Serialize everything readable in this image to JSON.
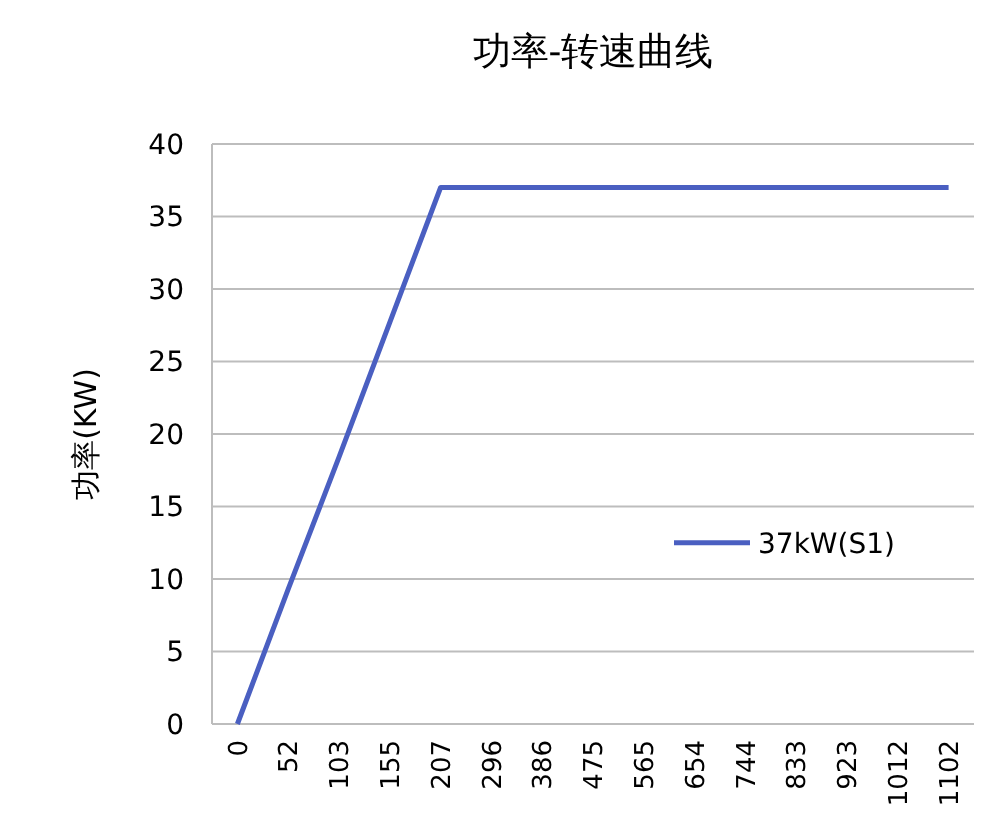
{
  "chart_data": {
    "type": "line",
    "title": "功率-转速曲线",
    "ylabel": "功率(KW)",
    "categories": [
      "0",
      "52",
      "103",
      "155",
      "207",
      "296",
      "386",
      "475",
      "565",
      "654",
      "744",
      "833",
      "923",
      "1012",
      "1102"
    ],
    "series": [
      {
        "name": "37kW(S1)",
        "color": "#4a5fc1",
        "values": [
          0,
          9.3,
          18.4,
          27.7,
          37,
          37,
          37,
          37,
          37,
          37,
          37,
          37,
          37,
          37,
          37
        ]
      }
    ],
    "ylim": [
      0,
      40
    ],
    "yticks": [
      0,
      5,
      10,
      15,
      20,
      25,
      30,
      35,
      40
    ],
    "grid": "y",
    "legend": "right",
    "marker": "none",
    "line_style": "solid"
  }
}
